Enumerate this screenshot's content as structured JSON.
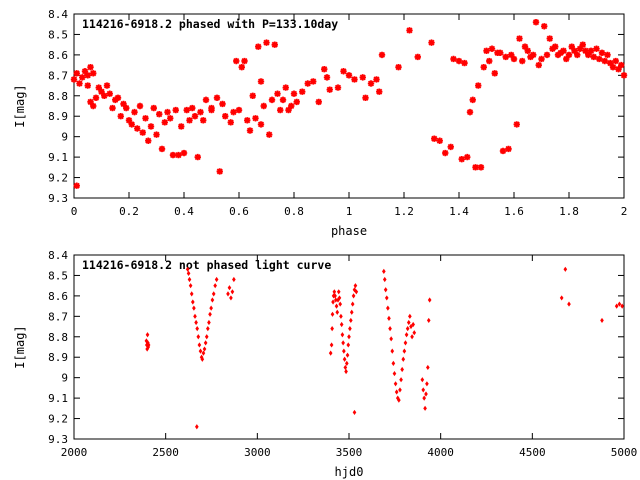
{
  "chart_data": [
    {
      "type": "scatter",
      "title": "114216-6918.2 phased with P=133.10day",
      "xlabel": "phase",
      "ylabel": "I[mag]",
      "xlim": [
        0,
        2
      ],
      "ylim": [
        9.3,
        8.4
      ],
      "y_inverted": true,
      "grid": false,
      "color": "#ff0000",
      "marker": "star",
      "xticks": [
        "0",
        "0.2",
        "0.4",
        "0.6",
        "0.8",
        "1",
        "1.2",
        "1.4",
        "1.6",
        "1.8",
        "2"
      ],
      "xtick_values": [
        0,
        0.2,
        0.4,
        0.6,
        0.8,
        1.0,
        1.2,
        1.4,
        1.6,
        1.8,
        2.0
      ],
      "yticks": [
        "8.4",
        "8.5",
        "8.6",
        "8.7",
        "8.8",
        "8.9",
        "9",
        "9.1",
        "9.2",
        "9.3"
      ],
      "ytick_values": [
        8.4,
        8.5,
        8.6,
        8.7,
        8.8,
        8.9,
        9.0,
        9.1,
        9.2,
        9.3
      ],
      "points": [
        [
          0.0,
          8.72
        ],
        [
          0.01,
          8.69
        ],
        [
          0.01,
          9.24
        ],
        [
          0.02,
          8.74
        ],
        [
          0.03,
          8.71
        ],
        [
          0.04,
          8.68
        ],
        [
          0.05,
          8.7
        ],
        [
          0.05,
          8.75
        ],
        [
          0.06,
          8.66
        ],
        [
          0.06,
          8.83
        ],
        [
          0.07,
          8.69
        ],
        [
          0.07,
          8.85
        ],
        [
          0.08,
          8.81
        ],
        [
          0.09,
          8.76
        ],
        [
          0.1,
          8.78
        ],
        [
          0.11,
          8.8
        ],
        [
          0.12,
          8.75
        ],
        [
          0.13,
          8.79
        ],
        [
          0.14,
          8.86
        ],
        [
          0.15,
          8.82
        ],
        [
          0.16,
          8.81
        ],
        [
          0.17,
          8.9
        ],
        [
          0.18,
          8.84
        ],
        [
          0.19,
          8.86
        ],
        [
          0.2,
          8.92
        ],
        [
          0.21,
          8.94
        ],
        [
          0.22,
          8.88
        ],
        [
          0.23,
          8.96
        ],
        [
          0.24,
          8.85
        ],
        [
          0.25,
          8.98
        ],
        [
          0.26,
          8.91
        ],
        [
          0.27,
          9.02
        ],
        [
          0.28,
          8.95
        ],
        [
          0.29,
          8.86
        ],
        [
          0.3,
          8.99
        ],
        [
          0.31,
          8.89
        ],
        [
          0.32,
          9.06
        ],
        [
          0.33,
          8.93
        ],
        [
          0.34,
          8.88
        ],
        [
          0.35,
          8.91
        ],
        [
          0.36,
          9.09
        ],
        [
          0.37,
          8.87
        ],
        [
          0.38,
          9.09
        ],
        [
          0.39,
          8.95
        ],
        [
          0.4,
          9.08
        ],
        [
          0.41,
          8.87
        ],
        [
          0.42,
          8.92
        ],
        [
          0.43,
          8.86
        ],
        [
          0.44,
          8.9
        ],
        [
          0.45,
          9.1
        ],
        [
          0.46,
          8.88
        ],
        [
          0.47,
          8.92
        ],
        [
          0.48,
          8.82
        ],
        [
          0.5,
          8.87
        ],
        [
          0.5,
          8.86
        ],
        [
          0.52,
          8.81
        ],
        [
          0.53,
          9.17
        ],
        [
          0.54,
          8.84
        ],
        [
          0.55,
          8.9
        ],
        [
          0.57,
          8.93
        ],
        [
          0.58,
          8.88
        ],
        [
          0.59,
          8.63
        ],
        [
          0.6,
          8.87
        ],
        [
          0.61,
          8.66
        ],
        [
          0.62,
          8.63
        ],
        [
          0.63,
          8.92
        ],
        [
          0.64,
          8.97
        ],
        [
          0.65,
          8.8
        ],
        [
          0.66,
          8.91
        ],
        [
          0.67,
          8.56
        ],
        [
          0.68,
          8.94
        ],
        [
          0.68,
          8.73
        ],
        [
          0.69,
          8.85
        ],
        [
          0.7,
          8.54
        ],
        [
          0.71,
          8.99
        ],
        [
          0.72,
          8.82
        ],
        [
          0.73,
          8.55
        ],
        [
          0.74,
          8.79
        ],
        [
          0.75,
          8.87
        ],
        [
          0.76,
          8.82
        ],
        [
          0.77,
          8.76
        ],
        [
          0.78,
          8.87
        ],
        [
          0.79,
          8.85
        ],
        [
          0.8,
          8.79
        ],
        [
          0.81,
          8.83
        ],
        [
          0.83,
          8.78
        ],
        [
          0.85,
          8.74
        ],
        [
          0.87,
          8.73
        ],
        [
          0.89,
          8.83
        ],
        [
          0.91,
          8.67
        ],
        [
          0.92,
          8.71
        ],
        [
          0.93,
          8.77
        ],
        [
          0.96,
          8.76
        ],
        [
          0.98,
          8.68
        ],
        [
          1.0,
          8.7
        ],
        [
          1.02,
          8.72
        ],
        [
          1.05,
          8.71
        ],
        [
          1.06,
          8.81
        ],
        [
          1.08,
          8.74
        ],
        [
          1.1,
          8.72
        ],
        [
          1.11,
          8.78
        ],
        [
          1.12,
          8.6
        ],
        [
          1.18,
          8.66
        ],
        [
          1.22,
          8.48
        ],
        [
          1.25,
          8.61
        ],
        [
          1.3,
          8.54
        ],
        [
          1.31,
          9.01
        ],
        [
          1.33,
          9.02
        ],
        [
          1.35,
          9.08
        ],
        [
          1.37,
          9.05
        ],
        [
          1.38,
          8.62
        ],
        [
          1.4,
          8.63
        ],
        [
          1.41,
          9.11
        ],
        [
          1.42,
          8.64
        ],
        [
          1.43,
          9.1
        ],
        [
          1.44,
          8.88
        ],
        [
          1.45,
          8.82
        ],
        [
          1.46,
          9.15
        ],
        [
          1.47,
          8.75
        ],
        [
          1.48,
          9.15
        ],
        [
          1.49,
          8.66
        ],
        [
          1.5,
          8.58
        ],
        [
          1.51,
          8.63
        ],
        [
          1.52,
          8.57
        ],
        [
          1.53,
          8.69
        ],
        [
          1.54,
          8.59
        ],
        [
          1.55,
          8.59
        ],
        [
          1.56,
          9.07
        ],
        [
          1.57,
          8.61
        ],
        [
          1.58,
          9.06
        ],
        [
          1.59,
          8.6
        ],
        [
          1.6,
          8.62
        ],
        [
          1.61,
          8.94
        ],
        [
          1.62,
          8.52
        ],
        [
          1.63,
          8.63
        ],
        [
          1.64,
          8.56
        ],
        [
          1.65,
          8.58
        ],
        [
          1.66,
          8.61
        ],
        [
          1.67,
          8.6
        ],
        [
          1.68,
          8.44
        ],
        [
          1.69,
          8.65
        ],
        [
          1.7,
          8.62
        ],
        [
          1.71,
          8.46
        ],
        [
          1.72,
          8.6
        ],
        [
          1.73,
          8.52
        ],
        [
          1.74,
          8.57
        ],
        [
          1.75,
          8.56
        ],
        [
          1.76,
          8.6
        ],
        [
          1.77,
          8.59
        ],
        [
          1.78,
          8.58
        ],
        [
          1.79,
          8.62
        ],
        [
          1.8,
          8.6
        ],
        [
          1.81,
          8.56
        ],
        [
          1.82,
          8.58
        ],
        [
          1.83,
          8.6
        ],
        [
          1.84,
          8.57
        ],
        [
          1.85,
          8.55
        ],
        [
          1.86,
          8.58
        ],
        [
          1.87,
          8.6
        ],
        [
          1.88,
          8.58
        ],
        [
          1.89,
          8.61
        ],
        [
          1.9,
          8.57
        ],
        [
          1.91,
          8.62
        ],
        [
          1.92,
          8.59
        ],
        [
          1.93,
          8.63
        ],
        [
          1.94,
          8.6
        ],
        [
          1.95,
          8.64
        ],
        [
          1.96,
          8.66
        ],
        [
          1.97,
          8.63
        ],
        [
          1.98,
          8.67
        ],
        [
          1.99,
          8.65
        ],
        [
          2.0,
          8.7
        ]
      ]
    },
    {
      "type": "scatter",
      "title": "114216-6918.2 not phased light curve",
      "xlabel": "hjd0",
      "ylabel": "I[mag]",
      "xlim": [
        2000,
        5000
      ],
      "ylim": [
        9.3,
        8.4
      ],
      "y_inverted": true,
      "grid": false,
      "color": "#ff0000",
      "marker": "diamond",
      "xticks": [
        "2000",
        "2500",
        "3000",
        "3500",
        "4000",
        "4500",
        "5000"
      ],
      "xtick_values": [
        2000,
        2500,
        3000,
        3500,
        4000,
        4500,
        5000
      ],
      "yticks": [
        "8.4",
        "8.5",
        "8.6",
        "8.7",
        "8.8",
        "8.9",
        "9",
        "9.1",
        "9.2",
        "9.3"
      ],
      "ytick_values": [
        8.4,
        8.5,
        8.6,
        8.7,
        8.8,
        8.9,
        9.0,
        9.1,
        9.2,
        9.3
      ],
      "points": [
        [
          2395,
          8.82
        ],
        [
          2397,
          8.84
        ],
        [
          2399,
          8.86
        ],
        [
          2401,
          8.79
        ],
        [
          2403,
          8.83
        ],
        [
          2405,
          8.85
        ],
        [
          2407,
          8.84
        ],
        [
          2620,
          8.47
        ],
        [
          2625,
          8.49
        ],
        [
          2630,
          8.52
        ],
        [
          2636,
          8.55
        ],
        [
          2642,
          8.59
        ],
        [
          2648,
          8.63
        ],
        [
          2654,
          8.66
        ],
        [
          2660,
          8.7
        ],
        [
          2666,
          8.73
        ],
        [
          2670,
          9.24
        ],
        [
          2672,
          8.76
        ],
        [
          2678,
          8.8
        ],
        [
          2684,
          8.84
        ],
        [
          2690,
          8.87
        ],
        [
          2696,
          8.9
        ],
        [
          2700,
          8.91
        ],
        [
          2706,
          8.88
        ],
        [
          2712,
          8.86
        ],
        [
          2718,
          8.83
        ],
        [
          2724,
          8.8
        ],
        [
          2730,
          8.76
        ],
        [
          2736,
          8.73
        ],
        [
          2742,
          8.69
        ],
        [
          2748,
          8.66
        ],
        [
          2755,
          8.62
        ],
        [
          2762,
          8.59
        ],
        [
          2770,
          8.55
        ],
        [
          2778,
          8.52
        ],
        [
          2840,
          8.59
        ],
        [
          2848,
          8.56
        ],
        [
          2856,
          8.61
        ],
        [
          2864,
          8.58
        ],
        [
          2872,
          8.52
        ],
        [
          3400,
          8.88
        ],
        [
          3405,
          8.84
        ],
        [
          3408,
          8.76
        ],
        [
          3410,
          8.69
        ],
        [
          3413,
          8.63
        ],
        [
          3416,
          8.6
        ],
        [
          3420,
          8.58
        ],
        [
          3424,
          8.6
        ],
        [
          3428,
          8.62
        ],
        [
          3432,
          8.65
        ],
        [
          3436,
          8.68
        ],
        [
          3440,
          8.62
        ],
        [
          3444,
          8.58
        ],
        [
          3448,
          8.61
        ],
        [
          3452,
          8.64
        ],
        [
          3456,
          8.7
        ],
        [
          3460,
          8.74
        ],
        [
          3464,
          8.79
        ],
        [
          3468,
          8.83
        ],
        [
          3472,
          8.87
        ],
        [
          3476,
          8.91
        ],
        [
          3480,
          8.95
        ],
        [
          3484,
          8.97
        ],
        [
          3488,
          8.93
        ],
        [
          3492,
          8.89
        ],
        [
          3496,
          8.84
        ],
        [
          3500,
          8.8
        ],
        [
          3505,
          8.76
        ],
        [
          3510,
          8.72
        ],
        [
          3515,
          8.68
        ],
        [
          3520,
          8.64
        ],
        [
          3525,
          8.6
        ],
        [
          3530,
          8.57
        ],
        [
          3535,
          8.55
        ],
        [
          3540,
          8.58
        ],
        [
          3530,
          9.17
        ],
        [
          3690,
          8.48
        ],
        [
          3695,
          8.52
        ],
        [
          3700,
          8.57
        ],
        [
          3706,
          8.61
        ],
        [
          3712,
          8.66
        ],
        [
          3718,
          8.71
        ],
        [
          3724,
          8.76
        ],
        [
          3730,
          8.81
        ],
        [
          3736,
          8.87
        ],
        [
          3742,
          8.93
        ],
        [
          3748,
          8.98
        ],
        [
          3754,
          9.03
        ],
        [
          3760,
          9.07
        ],
        [
          3766,
          9.1
        ],
        [
          3772,
          9.11
        ],
        [
          3778,
          9.06
        ],
        [
          3784,
          9.01
        ],
        [
          3790,
          8.96
        ],
        [
          3796,
          8.91
        ],
        [
          3802,
          8.87
        ],
        [
          3808,
          8.83
        ],
        [
          3814,
          8.79
        ],
        [
          3820,
          8.76
        ],
        [
          3826,
          8.73
        ],
        [
          3832,
          8.7
        ],
        [
          3838,
          8.75
        ],
        [
          3844,
          8.8
        ],
        [
          3850,
          8.74
        ],
        [
          3856,
          8.78
        ],
        [
          3900,
          9.01
        ],
        [
          3905,
          9.06
        ],
        [
          3910,
          9.1
        ],
        [
          3915,
          9.15
        ],
        [
          3920,
          9.08
        ],
        [
          3925,
          9.03
        ],
        [
          3930,
          8.95
        ],
        [
          3935,
          8.72
        ],
        [
          3940,
          8.62
        ],
        [
          4660,
          8.61
        ],
        [
          4680,
          8.47
        ],
        [
          4700,
          8.64
        ],
        [
          4880,
          8.72
        ],
        [
          4960,
          8.65
        ],
        [
          4975,
          8.64
        ],
        [
          4990,
          8.65
        ]
      ]
    }
  ]
}
